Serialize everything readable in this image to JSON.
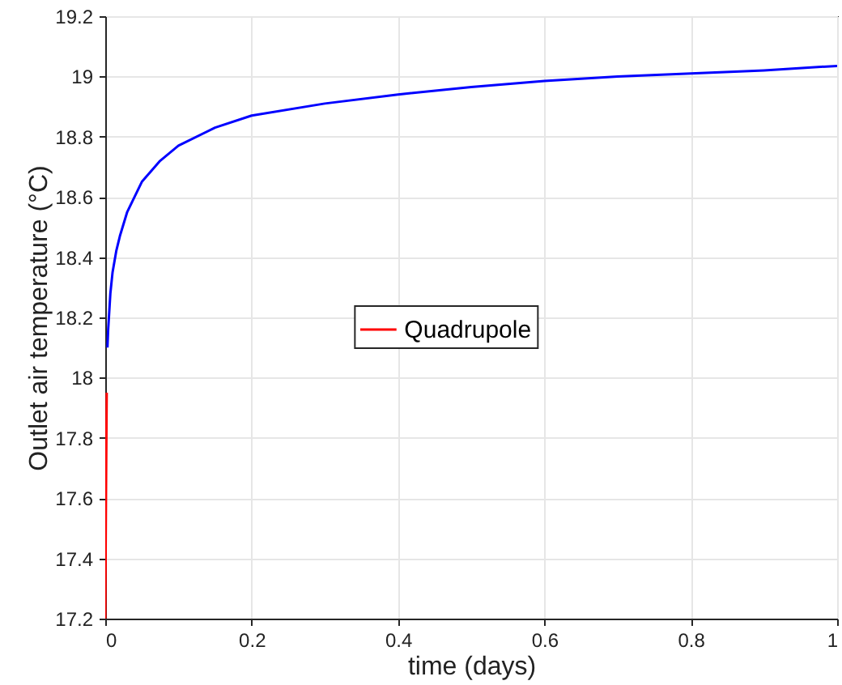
{
  "chart_data": {
    "type": "line",
    "xlabel": "time (days)",
    "ylabel": "Outlet air temperature (°C)",
    "xlim": [
      0,
      1
    ],
    "ylim": [
      17.2,
      19.2
    ],
    "xticks": [
      0,
      0.2,
      0.4,
      0.6,
      0.8,
      1
    ],
    "yticks": [
      17.2,
      17.4,
      17.6,
      17.8,
      18,
      18.2,
      18.4,
      18.6,
      18.8,
      19,
      19.2
    ],
    "grid": true,
    "legend": "center",
    "line_style": "solid",
    "series": [
      {
        "name": "Quadrupole",
        "color": "#ff0000",
        "x": [
          0,
          0.001,
          0.002
        ],
        "values": [
          17.2,
          17.6,
          17.95
        ]
      },
      {
        "color": "#0000ff",
        "x": [
          0.003,
          0.004,
          0.007,
          0.01,
          0.015,
          0.02,
          0.03,
          0.05,
          0.075,
          0.1,
          0.15,
          0.2,
          0.3,
          0.4,
          0.5,
          0.6,
          0.7,
          0.8,
          0.9,
          1
        ],
        "values": [
          18.1,
          18.16,
          18.28,
          18.35,
          18.42,
          18.47,
          18.55,
          18.65,
          18.72,
          18.77,
          18.83,
          18.87,
          18.91,
          18.94,
          18.965,
          18.985,
          19.0,
          19.01,
          19.02,
          19.035
        ]
      }
    ]
  }
}
